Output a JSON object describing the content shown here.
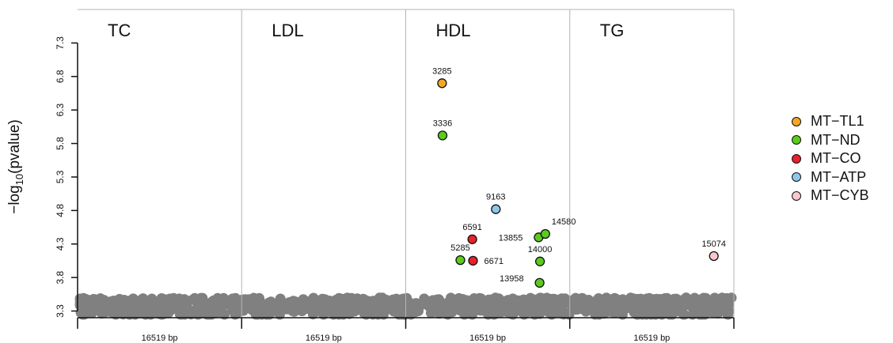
{
  "chart_data": {
    "type": "scatter",
    "ylabel_prefix": "−log",
    "ylabel_sub": "10",
    "ylabel_suffix": "(pvalue)",
    "ylim": [
      3.2,
      7.8
    ],
    "yticks": [
      "3.3",
      "3.8",
      "4.3",
      "4.8",
      "5.3",
      "5.8",
      "6.3",
      "6.8",
      "7.3"
    ],
    "panels": [
      {
        "name": "TC",
        "xlabel": "16519 bp"
      },
      {
        "name": "LDL",
        "xlabel": "16519 bp"
      },
      {
        "name": "HDL",
        "xlabel": "16519 bp"
      },
      {
        "name": "TG",
        "xlabel": "16519 bp"
      }
    ],
    "x_range_bp": [
      0,
      16569
    ],
    "series": [
      {
        "name": "MT−TL1",
        "color": "#F5A623",
        "points": [
          {
            "panel": "HDL",
            "position": 3285,
            "value": 6.7,
            "label": "3285"
          }
        ]
      },
      {
        "name": "MT−ND",
        "color": "#5ACC1E",
        "points": [
          {
            "panel": "HDL",
            "position": 3336,
            "value": 5.92,
            "label": "3336"
          },
          {
            "panel": "HDL",
            "position": 5285,
            "value": 4.06,
            "label": "5285"
          },
          {
            "panel": "HDL",
            "position": 13855,
            "value": 4.4,
            "label": "13855"
          },
          {
            "panel": "HDL",
            "position": 14580,
            "value": 4.45,
            "label": "14580"
          },
          {
            "panel": "HDL",
            "position": 14000,
            "value": 4.04,
            "label": "14000"
          },
          {
            "panel": "HDL",
            "position": 13958,
            "value": 3.72,
            "label": "13958"
          }
        ]
      },
      {
        "name": "MT−CO",
        "color": "#E8212B",
        "points": [
          {
            "panel": "HDL",
            "position": 6591,
            "value": 4.37,
            "label": "6591"
          },
          {
            "panel": "HDL",
            "position": 6671,
            "value": 4.05,
            "label": "6671"
          }
        ]
      },
      {
        "name": "MT−ATP",
        "color": "#8EC6E8",
        "points": [
          {
            "panel": "HDL",
            "position": 9163,
            "value": 4.82,
            "label": "9163"
          }
        ]
      },
      {
        "name": "MT−CYB",
        "color": "#F8C9CC",
        "points": [
          {
            "panel": "TG",
            "position": 15074,
            "value": 4.12,
            "label": "15074"
          }
        ]
      }
    ],
    "background_points": {
      "color": "#808080",
      "value_range": [
        3.2,
        3.5
      ]
    }
  }
}
